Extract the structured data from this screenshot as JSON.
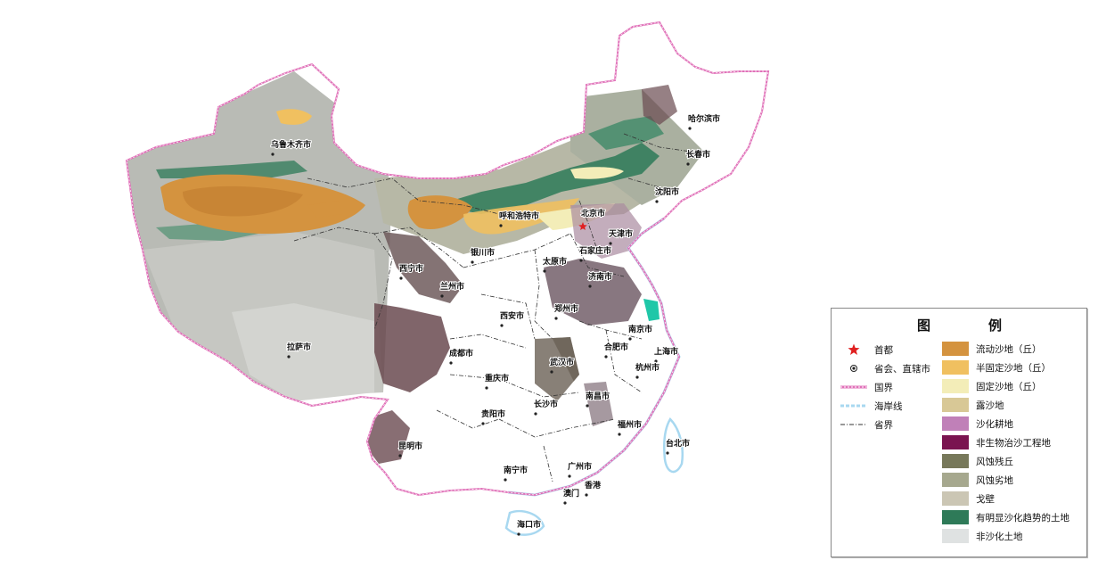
{
  "map": {
    "cities": [
      {
        "key": "urumqi",
        "name": "乌鲁木齐市"
      },
      {
        "key": "harbin",
        "name": "哈尔滨市"
      },
      {
        "key": "changchun",
        "name": "长春市"
      },
      {
        "key": "shenyang",
        "name": "沈阳市"
      },
      {
        "key": "hohhot",
        "name": "呼和浩特市"
      },
      {
        "key": "beijing",
        "name": "北京市"
      },
      {
        "key": "tianjin",
        "name": "天津市"
      },
      {
        "key": "yinchuan",
        "name": "银川市"
      },
      {
        "key": "taiyuan",
        "name": "太原市"
      },
      {
        "key": "shijiazhuang",
        "name": "石家庄市"
      },
      {
        "key": "xining",
        "name": "西宁市"
      },
      {
        "key": "lanzhou",
        "name": "兰州市"
      },
      {
        "key": "jinan",
        "name": "济南市"
      },
      {
        "key": "zhengzhou",
        "name": "郑州市"
      },
      {
        "key": "xian",
        "name": "西安市"
      },
      {
        "key": "nanjing",
        "name": "南京市"
      },
      {
        "key": "hefei",
        "name": "合肥市"
      },
      {
        "key": "shanghai",
        "name": "上海市"
      },
      {
        "key": "lhasa",
        "name": "拉萨市"
      },
      {
        "key": "chengdu",
        "name": "成都市"
      },
      {
        "key": "wuhan",
        "name": "武汉市"
      },
      {
        "key": "hangzhou",
        "name": "杭州市"
      },
      {
        "key": "chongqing",
        "name": "重庆市"
      },
      {
        "key": "nanchang",
        "name": "南昌市"
      },
      {
        "key": "changsha",
        "name": "长沙市"
      },
      {
        "key": "guiyang",
        "name": "贵阳市"
      },
      {
        "key": "fuzhou",
        "name": "福州市"
      },
      {
        "key": "kunming",
        "name": "昆明市"
      },
      {
        "key": "taibei",
        "name": "台北市"
      },
      {
        "key": "nanning",
        "name": "南宁市"
      },
      {
        "key": "guangzhou",
        "name": "广州市"
      },
      {
        "key": "xianggang",
        "name": "香港"
      },
      {
        "key": "aomen",
        "name": "澳门"
      },
      {
        "key": "haikou",
        "name": "海口市"
      }
    ]
  },
  "legend": {
    "title_left": "图",
    "title_right": "例",
    "symbols": [
      {
        "label": "首都",
        "icon": "red-star-icon",
        "color": "#e02020"
      },
      {
        "label": "省会、直辖市",
        "icon": "dot-icon",
        "color": "#222222"
      },
      {
        "label": "国界",
        "icon": "national-border-line",
        "color": "#e070b8"
      },
      {
        "label": "海岸线",
        "icon": "coastline-line",
        "color": "#a8d8f0"
      },
      {
        "label": "省界",
        "icon": "provincial-border-line",
        "color": "#333333"
      }
    ],
    "categories": [
      {
        "label": "流动沙地（丘）",
        "color": "#d4933f"
      },
      {
        "label": "半固定沙地（丘）",
        "color": "#f0c060"
      },
      {
        "label": "固定沙地（丘）",
        "color": "#f3edb8"
      },
      {
        "label": "露沙地",
        "color": "#d8c896"
      },
      {
        "label": "沙化耕地",
        "color": "#c080b8"
      },
      {
        "label": "非生物治沙工程地",
        "color": "#7a1450"
      },
      {
        "label": "风蚀残丘",
        "color": "#77785a"
      },
      {
        "label": "风蚀劣地",
        "color": "#a6a88e"
      },
      {
        "label": "戈壁",
        "color": "#cbc6b4"
      },
      {
        "label": "有明显沙化趋势的土地",
        "color": "#2e7a58"
      },
      {
        "label": "非沙化土地",
        "color": "#dfe2e2"
      }
    ]
  }
}
